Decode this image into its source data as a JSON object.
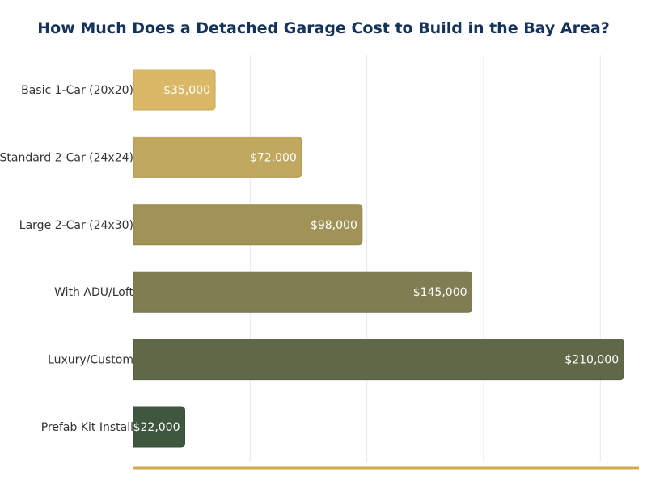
{
  "chart_data": {
    "type": "bar",
    "orientation": "horizontal",
    "title": "How Much Does a Detached Garage Cost to Build in the Bay Area?",
    "categories": [
      "Basic 1-Car (20x20)",
      "Standard 2-Car (24x24)",
      "Large 2-Car (24x30)",
      "With ADU/Loft",
      "Luxury/Custom",
      "Prefab Kit Install"
    ],
    "values": [
      35000,
      72000,
      98000,
      145000,
      210000,
      22000
    ],
    "value_labels": [
      "$35,000",
      "$72,000",
      "$98,000",
      "$145,000",
      "$210,000",
      "$22,000"
    ],
    "xlim": [
      0,
      220000
    ],
    "gridlines": [
      50000,
      100000,
      150000,
      200000
    ],
    "grid": true,
    "xlabel": "",
    "ylabel": ""
  },
  "colors": {
    "bars": [
      "#dab865",
      "#c0a85f",
      "#a19357",
      "#7f7d51",
      "#5f6947",
      "#3f573f"
    ],
    "title": "#14325a",
    "axis_line": "#d4a94e",
    "grid": "#e8e8e8"
  }
}
